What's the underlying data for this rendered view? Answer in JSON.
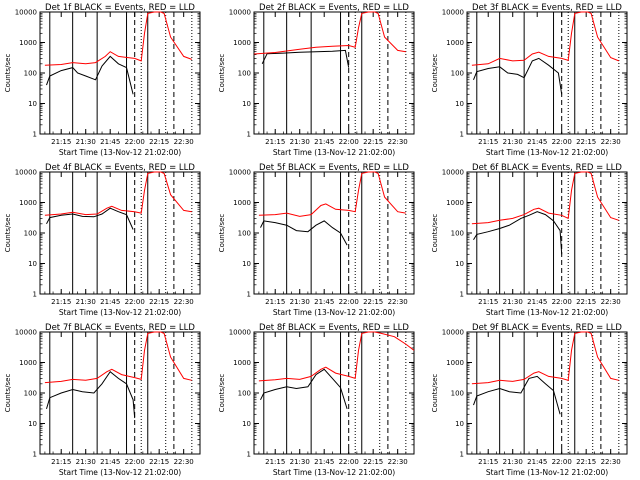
{
  "figure": {
    "ylabel": "Counts/sec",
    "xlabel": "Start Time (13-Nov-12 21:02:00)"
  },
  "colors": {
    "events": "#000000",
    "lld": "#ff0000",
    "axes": "#000000",
    "background": "#ffffff"
  },
  "chart_data": [
    {
      "type": "line",
      "title": "Det 1f BLACK = Events, RED = LLD",
      "ylabel": "Counts/sec",
      "xlabel": "Start Time (13-Nov-12 21:02:00)",
      "yscale": "log",
      "ylim": [
        1,
        10000
      ],
      "xlim": [
        "21:02",
        "22:40"
      ],
      "xticks": [
        "21:15",
        "21:30",
        "21:45",
        "22:00",
        "22:15",
        "22:30"
      ],
      "yticks": [
        "1",
        "10",
        "100",
        "1000",
        "10000"
      ],
      "vlines_solid": [
        "21:08",
        "21:22",
        "21:37",
        "21:55",
        "22:08"
      ],
      "vlines_dashed": [
        "22:00",
        "22:24"
      ],
      "vlines_dotted": [
        "22:04",
        "22:19",
        "22:35"
      ],
      "series": [
        {
          "name": "BLACK = Events",
          "x": [
            "21:06",
            "21:08",
            "21:15",
            "21:22",
            "21:25",
            "21:30",
            "21:36",
            "21:40",
            "21:45",
            "21:50",
            "21:55",
            "21:59"
          ],
          "y": [
            40,
            80,
            120,
            150,
            100,
            80,
            60,
            170,
            350,
            200,
            150,
            20
          ]
        },
        {
          "name": "RED = LLD",
          "x": [
            "21:05",
            "21:15",
            "21:22",
            "21:30",
            "21:36",
            "21:42",
            "21:45",
            "21:50",
            "22:00",
            "22:04",
            "22:06",
            "22:08",
            "22:12",
            "22:16",
            "22:18",
            "22:22",
            "22:30",
            "22:35"
          ],
          "y": [
            180,
            190,
            220,
            200,
            220,
            350,
            500,
            350,
            300,
            250,
            2000,
            9000,
            10000,
            10000,
            9000,
            1500,
            350,
            280
          ]
        }
      ]
    },
    {
      "type": "line",
      "title": "Det 2f BLACK = Events, RED = LLD",
      "ylabel": "Counts/sec",
      "xlabel": "Start Time (13-Nov-12 21:02:00)",
      "yscale": "log",
      "ylim": [
        1,
        10000
      ],
      "xlim": [
        "21:02",
        "22:40"
      ],
      "xticks": [
        "21:15",
        "21:30",
        "21:45",
        "22:00",
        "22:15",
        "22:30"
      ],
      "yticks": [
        "1",
        "10",
        "100",
        "1000",
        "10000"
      ],
      "vlines_solid": [
        "21:08",
        "21:22",
        "21:37",
        "21:55",
        "22:08"
      ],
      "vlines_dashed": [
        "22:00",
        "22:24"
      ],
      "vlines_dotted": [
        "22:04",
        "22:19",
        "22:35"
      ],
      "series": [
        {
          "name": "BLACK = Events",
          "x": [
            "21:07",
            "21:10",
            "21:20",
            "21:30",
            "21:40",
            "21:50",
            "21:58",
            "22:00"
          ],
          "y": [
            200,
            430,
            450,
            480,
            500,
            520,
            550,
            150
          ]
        },
        {
          "name": "RED = LLD",
          "x": [
            "21:02",
            "21:15",
            "21:30",
            "21:40",
            "21:50",
            "22:00",
            "22:04",
            "22:06",
            "22:08",
            "22:12",
            "22:16",
            "22:18",
            "22:22",
            "22:30",
            "22:35"
          ],
          "y": [
            420,
            470,
            600,
            700,
            750,
            800,
            700,
            3000,
            9000,
            10000,
            10000,
            9000,
            1500,
            550,
            500
          ]
        }
      ]
    },
    {
      "type": "line",
      "title": "Det 3f BLACK = Events, RED = LLD",
      "ylabel": "Counts/sec",
      "xlabel": "Start Time (13-Nov-12 21:02:00)",
      "yscale": "log",
      "ylim": [
        1,
        10000
      ],
      "xlim": [
        "21:02",
        "22:40"
      ],
      "xticks": [
        "21:15",
        "21:30",
        "21:45",
        "22:00",
        "22:15",
        "22:30"
      ],
      "yticks": [
        "1",
        "10",
        "100",
        "1000",
        "10000"
      ],
      "vlines_solid": [
        "21:08",
        "21:22",
        "21:37",
        "21:55",
        "22:08"
      ],
      "vlines_dashed": [
        "22:00",
        "22:24"
      ],
      "vlines_dotted": [
        "22:04",
        "22:19",
        "22:35"
      ],
      "series": [
        {
          "name": "BLACK = Events",
          "x": [
            "21:06",
            "21:08",
            "21:15",
            "21:22",
            "21:27",
            "21:33",
            "21:37",
            "21:42",
            "21:46",
            "21:52",
            "21:58",
            "22:00"
          ],
          "y": [
            60,
            110,
            140,
            160,
            100,
            90,
            70,
            250,
            300,
            180,
            100,
            20
          ]
        },
        {
          "name": "RED = LLD",
          "x": [
            "21:05",
            "21:15",
            "21:22",
            "21:30",
            "21:37",
            "21:42",
            "21:46",
            "21:52",
            "22:00",
            "22:04",
            "22:06",
            "22:08",
            "22:12",
            "22:16",
            "22:18",
            "22:22",
            "22:30",
            "22:35"
          ],
          "y": [
            180,
            200,
            300,
            250,
            260,
            420,
            480,
            350,
            300,
            260,
            2000,
            9000,
            10000,
            10000,
            9000,
            1500,
            320,
            250
          ]
        }
      ]
    },
    {
      "type": "line",
      "title": "Det 4f BLACK = Events, RED = LLD",
      "ylabel": "Counts/sec",
      "xlabel": "Start Time (13-Nov-12 21:02:00)",
      "yscale": "log",
      "ylim": [
        1,
        10000
      ],
      "xlim": [
        "21:02",
        "22:40"
      ],
      "xticks": [
        "21:15",
        "21:30",
        "21:45",
        "22:00",
        "22:15",
        "22:30"
      ],
      "yticks": [
        "1",
        "10",
        "100",
        "1000",
        "10000"
      ],
      "vlines_solid": [
        "21:08",
        "21:22",
        "21:37",
        "21:55",
        "22:08"
      ],
      "vlines_dashed": [
        "22:00",
        "22:24"
      ],
      "vlines_dotted": [
        "22:04",
        "22:19",
        "22:35"
      ],
      "series": [
        {
          "name": "BLACK = Events",
          "x": [
            "21:06",
            "21:08",
            "21:15",
            "21:22",
            "21:28",
            "21:35",
            "21:40",
            "21:45",
            "21:50",
            "21:55",
            "21:59"
          ],
          "y": [
            200,
            320,
            380,
            420,
            350,
            340,
            420,
            650,
            500,
            400,
            130
          ]
        },
        {
          "name": "RED = LLD",
          "x": [
            "21:05",
            "21:15",
            "21:22",
            "21:30",
            "21:37",
            "21:43",
            "21:46",
            "21:52",
            "22:00",
            "22:04",
            "22:06",
            "22:08",
            "22:12",
            "22:16",
            "22:18",
            "22:22",
            "22:30",
            "22:35"
          ],
          "y": [
            380,
            420,
            480,
            400,
            420,
            650,
            750,
            550,
            500,
            450,
            2500,
            9000,
            10000,
            10000,
            9000,
            1800,
            550,
            500
          ]
        }
      ]
    },
    {
      "type": "line",
      "title": "Det 5f BLACK = Events, RED = LLD",
      "ylabel": "Counts/sec",
      "xlabel": "Start Time (13-Nov-12 21:02:00)",
      "yscale": "log",
      "ylim": [
        1,
        10000
      ],
      "xlim": [
        "21:02",
        "22:40"
      ],
      "xticks": [
        "21:15",
        "21:30",
        "21:45",
        "22:00",
        "22:15",
        "22:30"
      ],
      "yticks": [
        "1",
        "10",
        "100",
        "1000",
        "10000"
      ],
      "vlines_solid": [
        "21:08",
        "21:22",
        "21:37",
        "21:55",
        "22:08"
      ],
      "vlines_dashed": [
        "22:00",
        "22:24"
      ],
      "vlines_dotted": [
        "22:04",
        "22:19",
        "22:35"
      ],
      "series": [
        {
          "name": "BLACK = Events",
          "x": [
            "21:06",
            "21:08",
            "21:15",
            "21:22",
            "21:28",
            "21:35",
            "21:40",
            "21:45",
            "21:50",
            "21:55",
            "21:59"
          ],
          "y": [
            150,
            250,
            220,
            180,
            120,
            110,
            180,
            250,
            150,
            100,
            40
          ]
        },
        {
          "name": "RED = LLD",
          "x": [
            "21:05",
            "21:15",
            "21:22",
            "21:30",
            "21:37",
            "21:43",
            "21:46",
            "21:52",
            "22:00",
            "22:04",
            "22:06",
            "22:08",
            "22:12",
            "22:16",
            "22:18",
            "22:22",
            "22:30",
            "22:35"
          ],
          "y": [
            380,
            400,
            450,
            350,
            400,
            800,
            900,
            600,
            550,
            500,
            2500,
            9000,
            10000,
            10000,
            9000,
            1500,
            500,
            450
          ]
        }
      ]
    },
    {
      "type": "line",
      "title": "Det 6f BLACK = Events, RED = LLD",
      "ylabel": "Counts/sec",
      "xlabel": "Start Time (13-Nov-12 21:02:00)",
      "yscale": "log",
      "ylim": [
        1,
        10000
      ],
      "xlim": [
        "21:02",
        "22:40"
      ],
      "xticks": [
        "21:15",
        "21:30",
        "21:45",
        "22:00",
        "22:15",
        "22:30"
      ],
      "yticks": [
        "1",
        "10",
        "100",
        "1000",
        "10000"
      ],
      "vlines_solid": [
        "21:08",
        "21:22",
        "21:37",
        "21:55",
        "22:08"
      ],
      "vlines_dashed": [
        "22:00",
        "22:24"
      ],
      "vlines_dotted": [
        "22:04",
        "22:19",
        "22:35"
      ],
      "series": [
        {
          "name": "BLACK = Events",
          "x": [
            "21:06",
            "21:08",
            "21:15",
            "21:22",
            "21:28",
            "21:35",
            "21:40",
            "21:45",
            "21:50",
            "21:55",
            "21:59",
            "22:00"
          ],
          "y": [
            60,
            90,
            110,
            140,
            180,
            300,
            380,
            500,
            400,
            250,
            120,
            20
          ]
        },
        {
          "name": "RED = LLD",
          "x": [
            "21:05",
            "21:15",
            "21:22",
            "21:30",
            "21:37",
            "21:43",
            "21:46",
            "21:52",
            "22:00",
            "22:04",
            "22:06",
            "22:08",
            "22:12",
            "22:16",
            "22:18",
            "22:22",
            "22:30",
            "22:35"
          ],
          "y": [
            200,
            220,
            260,
            300,
            400,
            600,
            650,
            450,
            380,
            300,
            2500,
            9000,
            10000,
            10000,
            9000,
            1500,
            320,
            260
          ]
        }
      ]
    },
    {
      "type": "line",
      "title": "Det 7f BLACK = Events, RED = LLD",
      "ylabel": "Counts/sec",
      "xlabel": "Start Time (13-Nov-12 21:02:00)",
      "yscale": "log",
      "ylim": [
        1,
        10000
      ],
      "xlim": [
        "21:02",
        "22:40"
      ],
      "xticks": [
        "21:15",
        "21:30",
        "21:45",
        "22:00",
        "22:15",
        "22:30"
      ],
      "yticks": [
        "1",
        "10",
        "100",
        "1000",
        "10000"
      ],
      "vlines_solid": [
        "21:08",
        "21:22",
        "21:37",
        "21:55",
        "22:08"
      ],
      "vlines_dashed": [
        "22:00",
        "22:24"
      ],
      "vlines_dotted": [
        "22:04",
        "22:19",
        "22:35"
      ],
      "series": [
        {
          "name": "BLACK = Events",
          "x": [
            "21:06",
            "21:08",
            "21:15",
            "21:22",
            "21:28",
            "21:35",
            "21:40",
            "21:45",
            "21:50",
            "21:55",
            "21:59",
            "22:00"
          ],
          "y": [
            30,
            70,
            100,
            130,
            110,
            100,
            200,
            500,
            300,
            200,
            60,
            15
          ]
        },
        {
          "name": "RED = LLD",
          "x": [
            "21:05",
            "21:15",
            "21:22",
            "21:30",
            "21:37",
            "21:43",
            "21:46",
            "21:52",
            "22:00",
            "22:04",
            "22:06",
            "22:08",
            "22:12",
            "22:16",
            "22:18",
            "22:22",
            "22:30",
            "22:35"
          ],
          "y": [
            220,
            240,
            280,
            260,
            300,
            500,
            600,
            400,
            320,
            280,
            2500,
            9000,
            10000,
            10000,
            9000,
            1500,
            300,
            260
          ]
        }
      ]
    },
    {
      "type": "line",
      "title": "Det 8f BLACK = Events, RED = LLD",
      "ylabel": "Counts/sec",
      "xlabel": "Start Time (13-Nov-12 21:02:00)",
      "yscale": "log",
      "ylim": [
        1,
        10000
      ],
      "xlim": [
        "21:02",
        "22:40"
      ],
      "xticks": [
        "21:15",
        "21:30",
        "21:45",
        "22:00",
        "22:15",
        "22:30"
      ],
      "yticks": [
        "1",
        "10",
        "100",
        "1000",
        "10000"
      ],
      "vlines_solid": [
        "21:08",
        "21:22",
        "21:37",
        "21:55",
        "22:08"
      ],
      "vlines_dashed": [
        "22:00",
        "22:24"
      ],
      "vlines_dotted": [
        "22:04",
        "22:19",
        "22:35"
      ],
      "series": [
        {
          "name": "BLACK = Events",
          "x": [
            "21:06",
            "21:08",
            "21:15",
            "21:22",
            "21:28",
            "21:35",
            "21:40",
            "21:45",
            "21:50",
            "21:55",
            "21:59"
          ],
          "y": [
            60,
            100,
            130,
            160,
            140,
            160,
            400,
            600,
            300,
            150,
            30
          ]
        },
        {
          "name": "RED = LLD",
          "x": [
            "21:05",
            "21:15",
            "21:22",
            "21:30",
            "21:37",
            "21:43",
            "21:46",
            "21:52",
            "22:00",
            "22:04",
            "22:06",
            "22:08",
            "22:12",
            "22:16",
            "22:20",
            "22:28",
            "22:35",
            "22:40"
          ],
          "y": [
            250,
            270,
            300,
            280,
            350,
            600,
            700,
            450,
            350,
            300,
            2500,
            9000,
            10000,
            10000,
            9000,
            7000,
            4000,
            2500
          ]
        }
      ]
    },
    {
      "type": "line",
      "title": "Det 9f BLACK = Events, RED = LLD",
      "ylabel": "Counts/sec",
      "xlabel": "Start Time (13-Nov-12 21:02:00)",
      "yscale": "log",
      "ylim": [
        1,
        10000
      ],
      "xlim": [
        "21:02",
        "22:40"
      ],
      "xticks": [
        "21:15",
        "21:30",
        "21:45",
        "22:00",
        "22:15",
        "22:30"
      ],
      "yticks": [
        "1",
        "10",
        "100",
        "1000",
        "10000"
      ],
      "vlines_solid": [
        "21:08",
        "21:22",
        "21:37",
        "21:55",
        "22:08"
      ],
      "vlines_dashed": [
        "22:00",
        "22:24"
      ],
      "vlines_dotted": [
        "22:04",
        "22:19",
        "22:35"
      ],
      "series": [
        {
          "name": "BLACK = Events",
          "x": [
            "21:06",
            "21:08",
            "21:15",
            "21:22",
            "21:28",
            "21:35",
            "21:40",
            "21:45",
            "21:50",
            "21:55",
            "21:59"
          ],
          "y": [
            40,
            80,
            110,
            140,
            110,
            100,
            300,
            350,
            200,
            120,
            20
          ]
        },
        {
          "name": "RED = LLD",
          "x": [
            "21:05",
            "21:15",
            "21:22",
            "21:30",
            "21:37",
            "21:43",
            "21:46",
            "21:52",
            "22:00",
            "22:04",
            "22:06",
            "22:08",
            "22:12",
            "22:16",
            "22:18",
            "22:22",
            "22:30",
            "22:35"
          ],
          "y": [
            200,
            220,
            260,
            240,
            280,
            450,
            500,
            350,
            300,
            260,
            2500,
            9000,
            10000,
            10000,
            9000,
            1500,
            300,
            260
          ]
        }
      ]
    }
  ]
}
